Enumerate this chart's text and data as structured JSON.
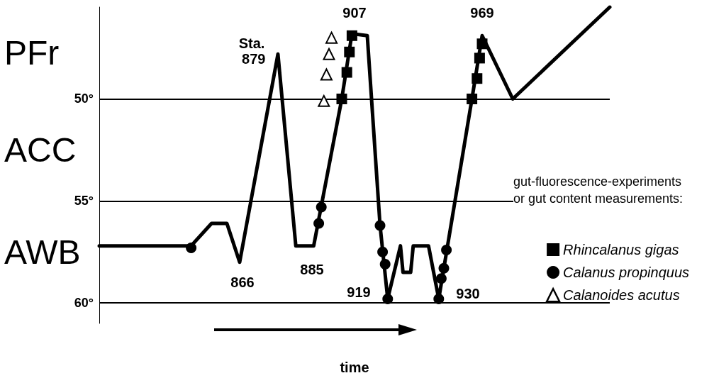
{
  "chart_data": {
    "type": "line",
    "xlabel": "time",
    "legend_title": "gut-fluorescence-experiments or gut content measurements:",
    "ylim": [
      61,
      45.5
    ],
    "yticks": [
      {
        "value": 50,
        "label": "50°"
      },
      {
        "value": 55,
        "label": "55°"
      },
      {
        "value": 60,
        "label": "60°"
      }
    ],
    "grid": "y",
    "tick_labels": "y",
    "legend": "bottom right",
    "line_style": "solid",
    "categories": [
      null,
      null,
      null,
      null,
      null,
      null,
      null,
      null,
      null,
      null,
      null,
      null,
      null,
      null,
      null,
      null,
      null,
      null,
      null,
      null,
      null,
      null,
      null,
      null,
      null,
      null,
      null,
      null,
      null,
      null,
      null,
      null,
      null,
      null,
      null,
      null,
      null,
      null,
      null,
      null,
      null,
      null,
      null,
      null,
      null,
      null,
      null,
      null,
      null,
      null,
      null,
      null,
      null,
      null,
      null,
      null,
      null,
      null,
      null,
      null,
      null,
      null,
      null,
      null,
      null,
      null,
      null,
      null,
      null,
      null,
      null,
      null,
      null,
      null,
      null,
      null,
      null,
      null,
      null,
      null,
      null,
      null,
      null,
      null,
      null,
      null,
      null,
      null,
      null,
      null,
      null,
      null,
      null,
      null,
      null,
      null,
      null,
      null,
      null,
      null,
      null,
      null,
      null,
      null,
      null,
      null,
      null,
      null,
      null,
      null,
      null,
      null,
      null,
      null,
      null,
      null,
      null,
      null,
      null,
      null,
      null,
      null,
      null,
      null,
      null,
      null,
      null,
      null,
      null,
      null,
      null,
      null,
      null,
      null,
      null,
      null,
      null,
      null,
      null,
      null,
      null,
      null,
      null,
      null,
      null,
      null,
      null,
      null,
      null,
      null,
      null,
      null,
      null,
      null,
      null,
      null,
      null,
      null,
      null,
      null,
      null,
      null,
      null,
      null,
      null,
      null,
      null,
      null,
      null,
      null,
      null,
      null,
      null,
      null,
      null,
      null,
      null,
      null,
      null,
      null,
      null,
      null,
      null,
      null,
      null,
      null,
      null,
      null,
      null,
      null,
      null,
      null,
      null,
      null,
      null,
      null,
      null,
      null,
      null,
      null,
      null
    ],
    "series": [
      {
        "color": "#000000",
        "values": [
          57.2,
          null,
          null,
          null,
          null,
          null,
          null,
          null,
          null,
          null,
          null,
          null,
          null,
          null,
          null,
          null,
          null,
          null,
          null,
          null,
          null,
          null,
          null,
          null,
          null,
          null,
          null,
          null,
          null,
          null,
          null,
          null,
          null,
          null,
          null,
          null,
          57.2,
          null,
          null,
          null,
          null,
          null,
          null,
          null,
          56.1,
          null,
          null,
          null,
          null,
          null,
          56.1,
          null,
          null,
          null,
          null,
          58,
          null,
          null,
          null,
          null,
          null,
          null,
          null,
          null,
          null,
          null,
          null,
          null,
          null,
          null,
          47.8,
          null,
          null,
          null,
          null,
          null,
          null,
          57.2,
          null,
          null,
          null,
          57.2,
          null,
          null,
          57.2,
          null,
          null,
          null,
          null,
          null,
          null,
          null,
          null,
          null,
          null,
          50,
          null,
          null,
          null,
          46.8,
          null,
          null,
          null,
          null,
          null,
          46.9,
          null,
          null,
          null,
          null,
          56.2,
          null,
          null,
          59.8,
          null,
          null,
          null,
          null,
          57.2,
          58.5,
          null,
          null,
          58.5,
          57.2,
          null,
          null,
          null,
          null,
          null,
          57.2,
          null,
          null,
          null,
          59.8,
          null,
          null,
          null,
          null,
          null,
          null,
          null,
          null,
          null,
          null,
          null,
          null,
          50,
          null,
          null,
          null,
          46.9,
          null,
          null,
          null,
          null,
          null,
          null,
          null,
          null,
          null,
          null,
          null,
          50,
          null,
          null,
          null,
          null,
          null,
          null,
          null,
          null,
          null,
          null,
          null,
          null,
          null,
          null,
          null,
          null,
          null,
          null,
          null,
          null,
          null,
          null,
          null,
          null,
          null,
          null,
          null,
          null,
          null,
          null,
          null,
          null,
          null,
          null,
          null,
          null,
          null,
          45.5
        ],
        "value_labels": [
          null,
          null,
          null,
          null,
          null,
          null,
          null,
          null,
          null,
          null,
          null,
          null,
          null,
          null,
          null,
          null,
          null,
          null,
          null,
          null,
          null,
          null,
          null,
          null,
          null,
          null,
          null,
          null,
          null,
          null,
          null,
          null,
          null,
          null,
          null,
          null,
          null,
          null,
          null,
          null,
          null,
          null,
          null,
          null,
          null,
          null,
          null,
          null,
          null,
          null,
          null,
          null,
          null,
          null,
          null,
          null,
          null,
          null,
          null,
          null,
          null,
          null,
          null,
          null,
          null,
          null,
          null,
          null,
          null,
          null,
          null,
          null,
          null,
          null,
          null,
          null,
          null,
          null,
          null,
          null,
          null,
          null,
          null,
          null,
          null,
          null,
          null,
          null,
          null,
          null,
          null,
          null,
          null,
          null,
          null,
          null,
          null,
          null,
          null,
          null,
          null,
          null,
          null,
          null,
          null,
          null,
          null,
          null,
          null,
          null,
          null,
          null,
          null,
          null,
          null,
          null,
          null,
          null,
          null,
          null,
          null,
          null,
          null,
          null,
          null,
          null,
          null,
          null,
          null,
          null,
          null,
          null,
          null,
          null,
          null,
          null,
          null,
          null,
          null,
          null,
          null,
          null,
          null,
          null,
          null,
          null,
          null,
          null,
          null,
          null,
          null,
          null,
          null,
          null,
          null,
          null,
          null,
          null,
          null,
          null,
          null,
          null,
          null,
          null,
          null,
          null,
          null,
          null,
          null,
          null,
          null,
          null,
          null,
          null,
          null,
          null,
          null,
          null,
          null,
          null,
          null,
          null,
          null,
          null,
          null,
          null,
          null,
          null,
          null,
          null,
          null,
          null,
          null,
          null,
          null,
          null,
          null,
          null,
          null,
          null,
          null
        ]
      },
      {
        "type": "scatter",
        "name": "Rhincalanus gigas",
        "color": "#000000",
        "marker": "square",
        "values": [
          null,
          null,
          null,
          null,
          null,
          null,
          null,
          null,
          null,
          null,
          null,
          null,
          null,
          null,
          null,
          null,
          null,
          null,
          null,
          null,
          null,
          null,
          null,
          null,
          null,
          null,
          null,
          null,
          null,
          null,
          null,
          null,
          null,
          null,
          null,
          null,
          null,
          null,
          null,
          null,
          null,
          null,
          null,
          null,
          null,
          null,
          null,
          null,
          null,
          null,
          null,
          null,
          null,
          null,
          null,
          null,
          null,
          null,
          null,
          null,
          null,
          null,
          null,
          null,
          null,
          null,
          null,
          null,
          null,
          null,
          null,
          null,
          null,
          null,
          null,
          null,
          null,
          null,
          null,
          null,
          null,
          null,
          null,
          null,
          null,
          null,
          null,
          null,
          null,
          null,
          null,
          null,
          null,
          null,
          null,
          50,
          null,
          48.7,
          47.7,
          46.9,
          null,
          null,
          null,
          null,
          null,
          null,
          null,
          null,
          null,
          null,
          null,
          null,
          null,
          null,
          null,
          null,
          null,
          null,
          null,
          null,
          null,
          null,
          null,
          null,
          null,
          null,
          null,
          null,
          null,
          null,
          null,
          null,
          null,
          null,
          null,
          null,
          null,
          null,
          null,
          null,
          null,
          null,
          null,
          null,
          null,
          null,
          50,
          null,
          49,
          48,
          47.3,
          null,
          null,
          null,
          null,
          null,
          null,
          null,
          null,
          null,
          null,
          null,
          null,
          null,
          null,
          null,
          null,
          null,
          null,
          null,
          null,
          null,
          null,
          null,
          null,
          null,
          null,
          null,
          null,
          null,
          null,
          null,
          null,
          null,
          null,
          null,
          null,
          null,
          null,
          null,
          null,
          null,
          null,
          null,
          null,
          null,
          null,
          null,
          null,
          null,
          null
        ]
      },
      {
        "type": "scatter",
        "name": "Calanus propinquus",
        "color": "#000000",
        "marker": "circle",
        "values": [
          null,
          null,
          null,
          null,
          null,
          null,
          null,
          null,
          null,
          null,
          null,
          null,
          null,
          null,
          null,
          null,
          null,
          null,
          null,
          null,
          null,
          null,
          null,
          null,
          null,
          null,
          null,
          null,
          null,
          null,
          null,
          null,
          null,
          null,
          null,
          null,
          57.3,
          null,
          null,
          null,
          null,
          null,
          null,
          null,
          null,
          null,
          null,
          null,
          null,
          null,
          null,
          null,
          null,
          null,
          null,
          null,
          null,
          null,
          null,
          null,
          null,
          null,
          null,
          null,
          null,
          null,
          null,
          null,
          null,
          null,
          null,
          null,
          null,
          null,
          null,
          null,
          null,
          null,
          null,
          null,
          null,
          null,
          null,
          null,
          null,
          null,
          56.1,
          55.3,
          null,
          null,
          null,
          null,
          null,
          null,
          null,
          null,
          null,
          null,
          null,
          null,
          null,
          null,
          null,
          null,
          null,
          null,
          null,
          null,
          null,
          null,
          56.2,
          57.5,
          58.1,
          59.8,
          null,
          null,
          null,
          null,
          null,
          null,
          null,
          null,
          null,
          null,
          null,
          null,
          null,
          null,
          null,
          null,
          null,
          null,
          null,
          59.8,
          58.8,
          58.3,
          57.4,
          null,
          null,
          null,
          null,
          null,
          null,
          null,
          null,
          null,
          null,
          null,
          null,
          null,
          null,
          null,
          null,
          null,
          null,
          null,
          null,
          null,
          null,
          null,
          null,
          null,
          null,
          null,
          null,
          null,
          null,
          null,
          null,
          null,
          null,
          null,
          null,
          null,
          null,
          null,
          null,
          null,
          null,
          null,
          null,
          null,
          null,
          null,
          null,
          null,
          null,
          null,
          null,
          null,
          null,
          null,
          null,
          null,
          null,
          null,
          null,
          null,
          null,
          null,
          null
        ]
      },
      {
        "type": "scatter",
        "name": "Calanoides acutus",
        "color": "#000000",
        "marker": "triangle",
        "values": [
          null,
          null,
          null,
          null,
          null,
          null,
          null,
          null,
          null,
          null,
          null,
          null,
          null,
          null,
          null,
          null,
          null,
          null,
          null,
          null,
          null,
          null,
          null,
          null,
          null,
          null,
          null,
          null,
          null,
          null,
          null,
          null,
          null,
          null,
          null,
          null,
          null,
          null,
          null,
          null,
          null,
          null,
          null,
          null,
          null,
          null,
          null,
          null,
          null,
          null,
          null,
          null,
          null,
          null,
          null,
          null,
          null,
          null,
          null,
          null,
          null,
          null,
          null,
          null,
          null,
          null,
          null,
          null,
          null,
          null,
          null,
          null,
          null,
          null,
          null,
          null,
          null,
          null,
          null,
          null,
          null,
          null,
          null,
          null,
          null,
          null,
          null,
          null,
          50.1,
          48.8,
          47.8,
          47,
          null,
          null,
          null,
          null,
          null,
          null,
          null,
          null,
          null,
          null,
          null,
          null,
          null,
          null,
          null,
          null,
          null,
          null,
          null,
          null,
          null,
          null,
          null,
          null,
          null,
          null,
          null,
          null,
          null,
          null,
          null,
          null,
          null,
          null,
          null,
          null,
          null,
          null,
          null,
          null,
          null,
          null,
          null,
          null,
          null,
          null,
          null,
          null,
          null,
          null,
          null,
          null,
          null,
          null,
          null,
          null,
          null,
          null,
          null,
          null,
          null,
          null,
          null,
          null,
          null,
          null,
          null,
          null,
          null,
          null,
          null,
          null,
          null,
          null,
          null,
          null,
          null,
          null,
          null,
          null,
          null,
          null,
          null,
          null,
          null,
          null,
          null,
          null,
          null,
          null,
          null,
          null,
          null,
          null,
          null,
          null,
          null,
          null,
          null,
          null,
          null,
          null,
          null,
          null,
          null,
          null,
          null,
          null,
          null
        ]
      }
    ],
    "annotations": [
      "PFr",
      "ACC",
      "AWB",
      "Sta. 879",
      "866",
      "885",
      "907",
      "919",
      "930",
      "969"
    ]
  }
}
